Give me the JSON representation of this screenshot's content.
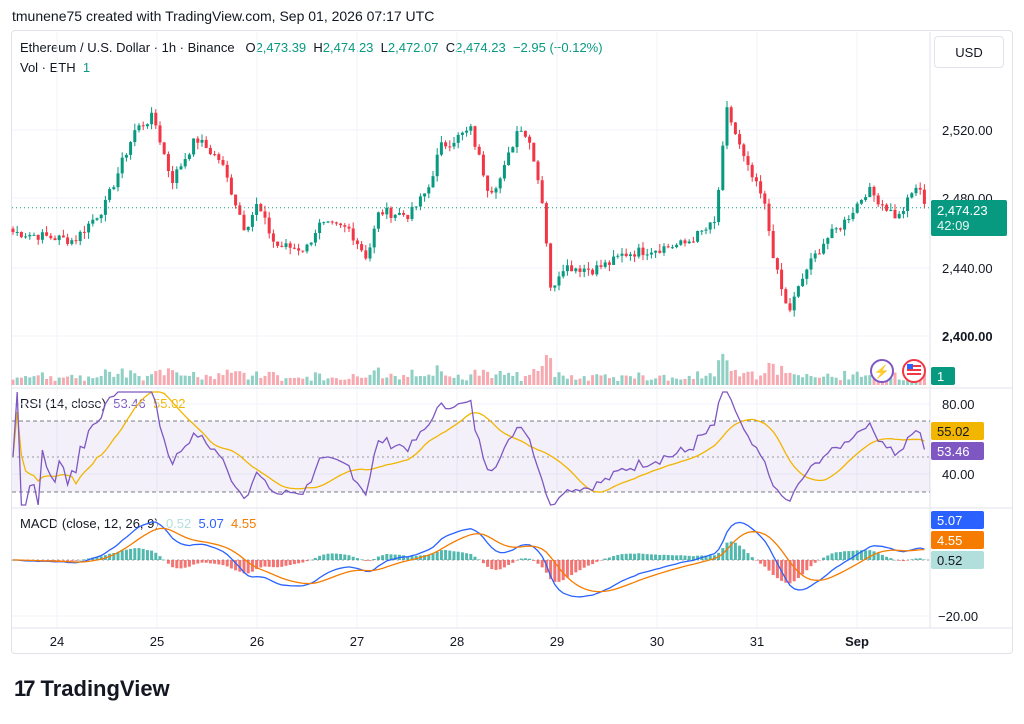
{
  "header": {
    "attribution": "tmunene75 created with TradingView.com, Sep 01, 2026 07:17 UTC"
  },
  "symbol": {
    "name": "Ethereum / U.S. Dollar · 1h · Binance",
    "o_label": "O",
    "open": "2,473.39",
    "h_label": "H",
    "high": "2,474.23",
    "l_label": "L",
    "low": "2,472.07",
    "c_label": "C",
    "close": "2,474.23",
    "change": "−2.95 (−0.12%)",
    "vol_label": "Vol · ETH",
    "vol_value": "1"
  },
  "currency_button": "USD",
  "price_tag": {
    "price": "2,474.23",
    "countdown": "42:09",
    "color": "#089981"
  },
  "volume_tag": "1",
  "rsi": {
    "label": "RSI (14, close)",
    "value": "53.46",
    "ma": "55.02",
    "tag_rsi": "53.46",
    "tag_ma": "55.02"
  },
  "macd": {
    "label": "MACD (close, 12, 26, 9)",
    "hist": "0.52",
    "macd": "5.07",
    "signal": "4.55",
    "tag_macd": "5.07",
    "tag_signal": "4.55",
    "tag_hist": "0.52"
  },
  "colors": {
    "up": "#089981",
    "down": "#f23645",
    "rsi": "#7e57c2",
    "rsi_ma": "#f2b500",
    "macd": "#2962ff",
    "signal": "#f57c00"
  },
  "brand": "TradingView",
  "chart_data": {
    "type": "candlestick",
    "price_axis_ticks": [
      "2,520.00",
      "2,480.00",
      "2,440.00",
      "2,400.00"
    ],
    "rsi_axis_ticks": [
      "80.00",
      "40.00"
    ],
    "macd_axis_ticks": [
      "−20.00"
    ],
    "x_ticks": [
      "24",
      "25",
      "26",
      "27",
      "28",
      "29",
      "30",
      "31",
      "Sep"
    ],
    "ylim": [
      2393,
      2550
    ],
    "price_path": [
      [
        0,
        2460
      ],
      [
        1,
        2455
      ],
      [
        1.5,
        2475
      ],
      [
        2,
        2520
      ],
      [
        2.3,
        2528
      ],
      [
        2.6,
        2490
      ],
      [
        3,
        2515
      ],
      [
        3.4,
        2502
      ],
      [
        3.8,
        2462
      ],
      [
        4,
        2476
      ],
      [
        4.3,
        2452
      ],
      [
        4.8,
        2450
      ],
      [
        5,
        2464
      ],
      [
        5.5,
        2462
      ],
      [
        5.8,
        2445
      ],
      [
        6,
        2472
      ],
      [
        6.5,
        2470
      ],
      [
        6.8,
        2485
      ],
      [
        7,
        2510
      ],
      [
        7.5,
        2520
      ],
      [
        7.8,
        2484
      ],
      [
        8,
        2492
      ],
      [
        8.3,
        2524
      ],
      [
        8.5,
        2510
      ],
      [
        8.7,
        2473
      ],
      [
        8.8,
        2425
      ],
      [
        9,
        2440
      ],
      [
        9.5,
        2438
      ],
      [
        9.8,
        2442
      ],
      [
        10,
        2447
      ],
      [
        10.5,
        2450
      ],
      [
        11,
        2453
      ],
      [
        11.5,
        2465
      ],
      [
        11.7,
        2532
      ],
      [
        12,
        2500
      ],
      [
        12.3,
        2478
      ],
      [
        12.5,
        2438
      ],
      [
        12.7,
        2412
      ],
      [
        13,
        2438
      ],
      [
        13.3,
        2455
      ],
      [
        13.6,
        2465
      ],
      [
        14,
        2485
      ],
      [
        14.5,
        2468
      ],
      [
        14.8,
        2487
      ],
      [
        15,
        2474
      ]
    ]
  }
}
